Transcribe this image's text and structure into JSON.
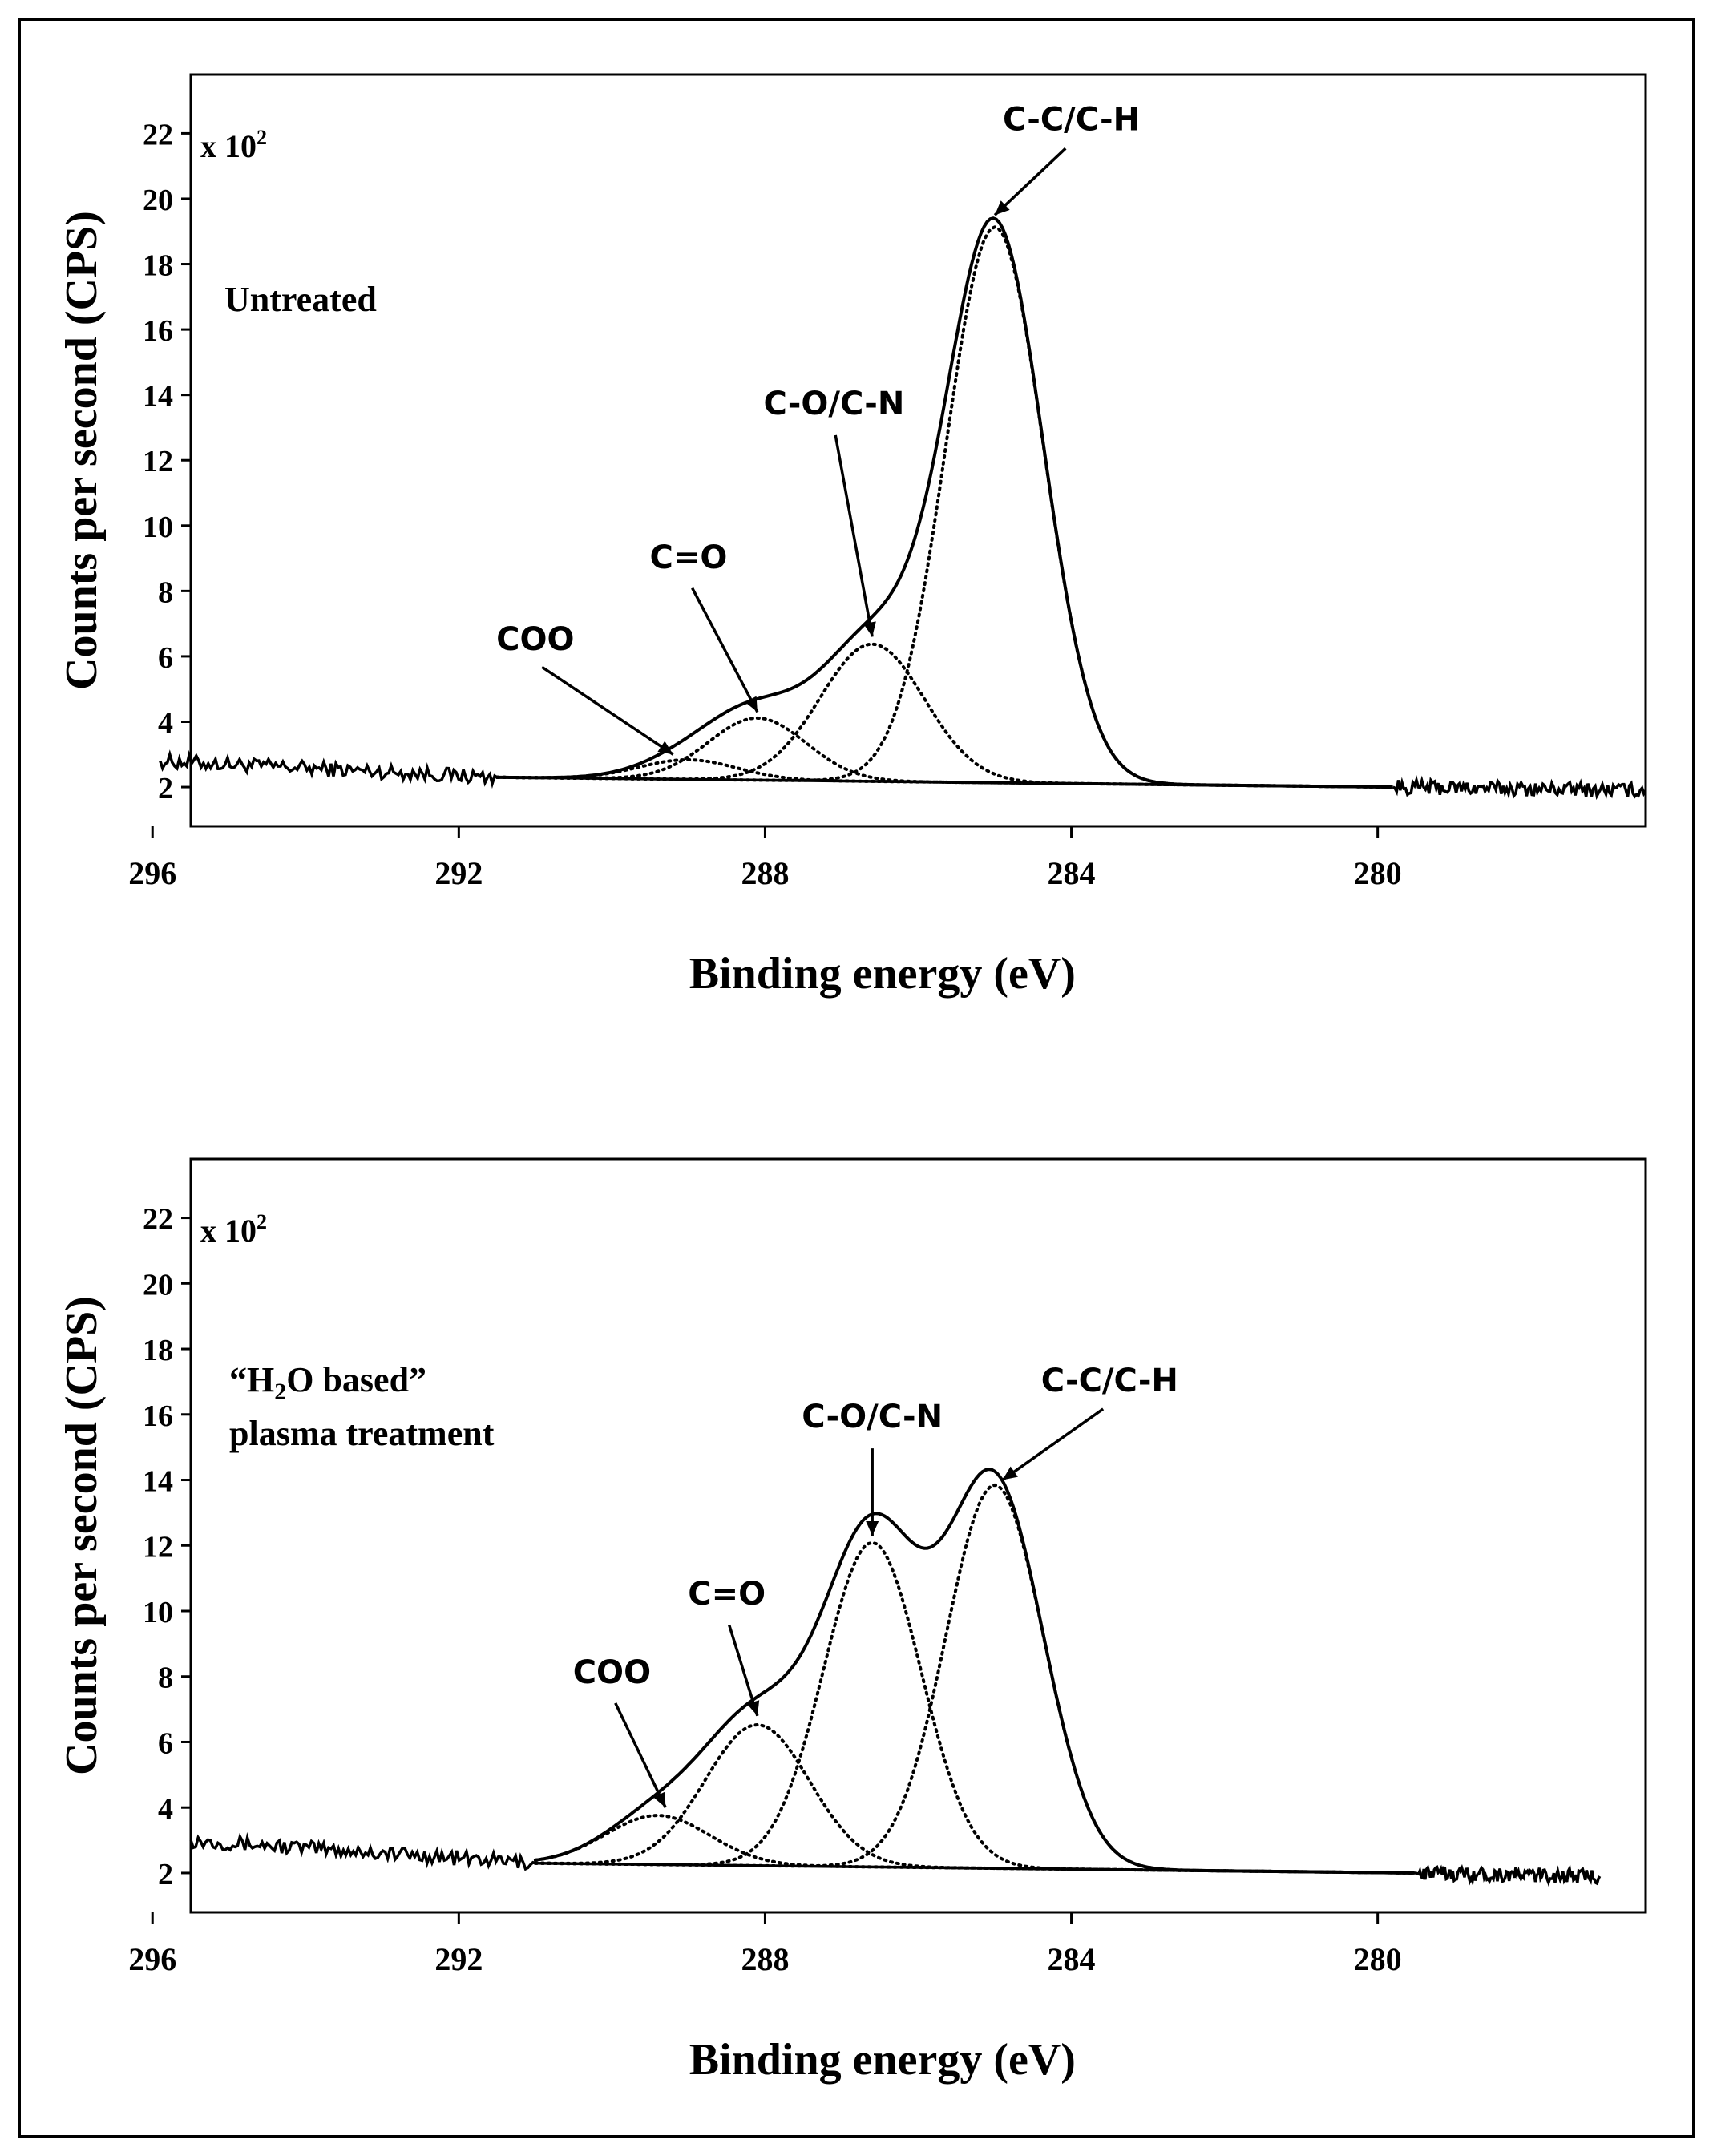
{
  "chart_data": [
    {
      "type": "line",
      "panel": "top",
      "annotation": "Untreated",
      "xlabel": "Binding energy (eV)",
      "ylabel": "Counts per second (CPS)",
      "y_multiplier_label": "x 10",
      "y_multiplier_exp": "2",
      "xlim": [
        295.5,
        276.5
      ],
      "ylim": [
        0.8,
        23.8
      ],
      "x_ticks": [
        296,
        292,
        288,
        284,
        280
      ],
      "x_tick_labels": [
        "296",
        "292",
        "288",
        "284",
        "280"
      ],
      "y_ticks": [
        2,
        4,
        6,
        8,
        10,
        12,
        14,
        16,
        18,
        20,
        22
      ],
      "y_tick_labels": [
        "2",
        "4",
        "6",
        "8",
        "10",
        "12",
        "14",
        "16",
        "18",
        "20",
        "22"
      ],
      "baseline": {
        "x": [
          291.5,
          279.8
        ],
        "y": [
          2.3,
          2.0
        ]
      },
      "noise_left": {
        "x": [
          295.9,
          291.5
        ],
        "y_start": 2.8,
        "y_end": 2.3
      },
      "noise_right": {
        "x": [
          279.8,
          276.5
        ],
        "y_start": 2.0,
        "y_end": 1.9
      },
      "components": [
        {
          "name": "COO",
          "center": 289.0,
          "height": 0.6,
          "fwhm": 1.5
        },
        {
          "name": "C=O",
          "center": 288.1,
          "height": 1.9,
          "fwhm": 1.5
        },
        {
          "name": "C-O/C-N",
          "center": 286.6,
          "height": 4.2,
          "fwhm": 1.6
        },
        {
          "name": "C-C/C-H",
          "center": 285.0,
          "height": 17.0,
          "fwhm": 1.5
        }
      ],
      "peak_labels": [
        {
          "text": "C-C/C-H",
          "x": 284.0,
          "y": 22.1,
          "tip_x": 285.0,
          "tip_y": 19.5
        },
        {
          "text": "C-O/C-N",
          "x": 287.1,
          "y": 13.4,
          "tip_x": 286.6,
          "tip_y": 6.6
        },
        {
          "text": "C=O",
          "x": 289.0,
          "y": 8.7,
          "tip_x": 288.1,
          "tip_y": 4.3
        },
        {
          "text": "COO",
          "x": 291.0,
          "y": 6.2,
          "tip_x": 289.2,
          "tip_y": 3.0
        }
      ]
    },
    {
      "type": "line",
      "panel": "bottom",
      "annotation_line1_pre": "“H",
      "annotation_line1_sub": "2",
      "annotation_line1_post": "O based”",
      "annotation_line2": "plasma treatment",
      "xlabel": "Binding energy (eV)",
      "ylabel": "Counts per second (CPS)",
      "y_multiplier_label": "x 10",
      "y_multiplier_exp": "2",
      "xlim": [
        295.5,
        276.5
      ],
      "ylim": [
        0.8,
        23.8
      ],
      "x_ticks": [
        296,
        292,
        288,
        284,
        280
      ],
      "x_tick_labels": [
        "296",
        "292",
        "288",
        "284",
        "280"
      ],
      "y_ticks": [
        2,
        4,
        6,
        8,
        10,
        12,
        14,
        16,
        18,
        20,
        22
      ],
      "y_tick_labels": [
        "2",
        "4",
        "6",
        "8",
        "10",
        "12",
        "14",
        "16",
        "18",
        "20",
        "22"
      ],
      "baseline": {
        "x": [
          291.0,
          279.5
        ],
        "y": [
          2.3,
          2.0
        ]
      },
      "noise_left": {
        "x": [
          295.5,
          291.0
        ],
        "y_start": 3.0,
        "y_end": 2.3
      },
      "noise_right": {
        "x": [
          279.5,
          277.1
        ],
        "y_start": 2.0,
        "y_end": 1.9
      },
      "components": [
        {
          "name": "COO",
          "center": 289.4,
          "height": 1.5,
          "fwhm": 1.6
        },
        {
          "name": "C=O",
          "center": 288.1,
          "height": 4.3,
          "fwhm": 1.6
        },
        {
          "name": "C-O/C-N",
          "center": 286.6,
          "height": 9.9,
          "fwhm": 1.5
        },
        {
          "name": "C-C/C-H",
          "center": 285.0,
          "height": 11.7,
          "fwhm": 1.5
        }
      ],
      "peak_labels": [
        {
          "text": "C-C/C-H",
          "x": 283.5,
          "y": 16.7,
          "tip_x": 284.9,
          "tip_y": 14.0
        },
        {
          "text": "C-O/C-N",
          "x": 286.6,
          "y": 15.6,
          "tip_x": 286.6,
          "tip_y": 12.3
        },
        {
          "text": "C=O",
          "x": 288.5,
          "y": 10.2,
          "tip_x": 288.1,
          "tip_y": 6.8
        },
        {
          "text": "COO",
          "x": 290.0,
          "y": 7.8,
          "tip_x": 289.3,
          "tip_y": 4.0
        }
      ]
    }
  ]
}
